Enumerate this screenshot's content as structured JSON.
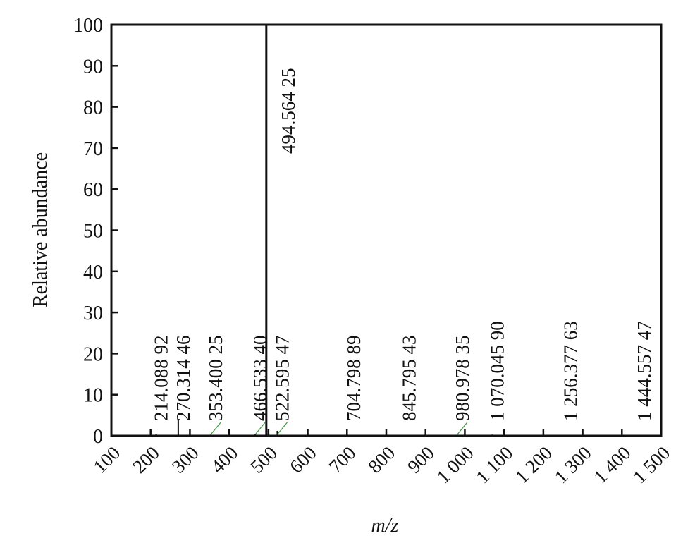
{
  "chart_data": {
    "type": "bar",
    "xlabel": "m/z",
    "ylabel": "Relative abundance",
    "xlim": [
      100,
      1500
    ],
    "ylim": [
      0,
      100
    ],
    "x_ticks": [
      "100",
      "200",
      "300",
      "400",
      "500",
      "600",
      "700",
      "800",
      "900",
      "1 000",
      "1 100",
      "1 200",
      "1 300",
      "1 400",
      "1 500"
    ],
    "y_ticks": [
      "0",
      "10",
      "20",
      "30",
      "40",
      "50",
      "60",
      "70",
      "80",
      "90",
      "100"
    ],
    "peaks": [
      {
        "mz": 214.08892,
        "abundance": 0.5
      },
      {
        "mz": 270.31446,
        "abundance": 3.8
      },
      {
        "mz": 353.40025,
        "abundance": 0.3
      },
      {
        "mz": 466.5334,
        "abundance": 0.4
      },
      {
        "mz": 494.56425,
        "abundance": 100
      },
      {
        "mz": 522.59547,
        "abundance": 1.2
      },
      {
        "mz": 704.79889,
        "abundance": 0.2
      },
      {
        "mz": 845.79543,
        "abundance": 0.2
      },
      {
        "mz": 980.97835,
        "abundance": 0.3
      },
      {
        "mz": 1070.0459,
        "abundance": 0.3
      },
      {
        "mz": 1256.37763,
        "abundance": 0.2
      },
      {
        "mz": 1444.55747,
        "abundance": 0.2
      }
    ],
    "labels": [
      {
        "text": "214.088 92",
        "mz": 214.08892,
        "leader": false
      },
      {
        "text": "270.314 46",
        "mz": 270.31446,
        "leader": false
      },
      {
        "text": "353.400 25",
        "mz": 353.40025,
        "leader": true
      },
      {
        "text": "466.533 40",
        "mz": 466.5334,
        "leader": true
      },
      {
        "text": "494.564 25",
        "mz": 494.56425,
        "leader": false
      },
      {
        "text": "522.595 47",
        "mz": 522.59547,
        "leader": true
      },
      {
        "text": "704.798 89",
        "mz": 704.79889,
        "leader": false
      },
      {
        "text": "845.795 43",
        "mz": 845.79543,
        "leader": false
      },
      {
        "text": "980.978 35",
        "mz": 980.97835,
        "leader": true
      },
      {
        "text": "1 070.045 90",
        "mz": 1070.0459,
        "leader": false
      },
      {
        "text": "1 256.377 63",
        "mz": 1256.37763,
        "leader": false
      },
      {
        "text": "1 444.557 47",
        "mz": 1444.55747,
        "leader": false
      }
    ],
    "grid": false,
    "colors": {
      "bar": "#111111",
      "leader": "#3a9a3a",
      "axis": "#111111"
    }
  }
}
